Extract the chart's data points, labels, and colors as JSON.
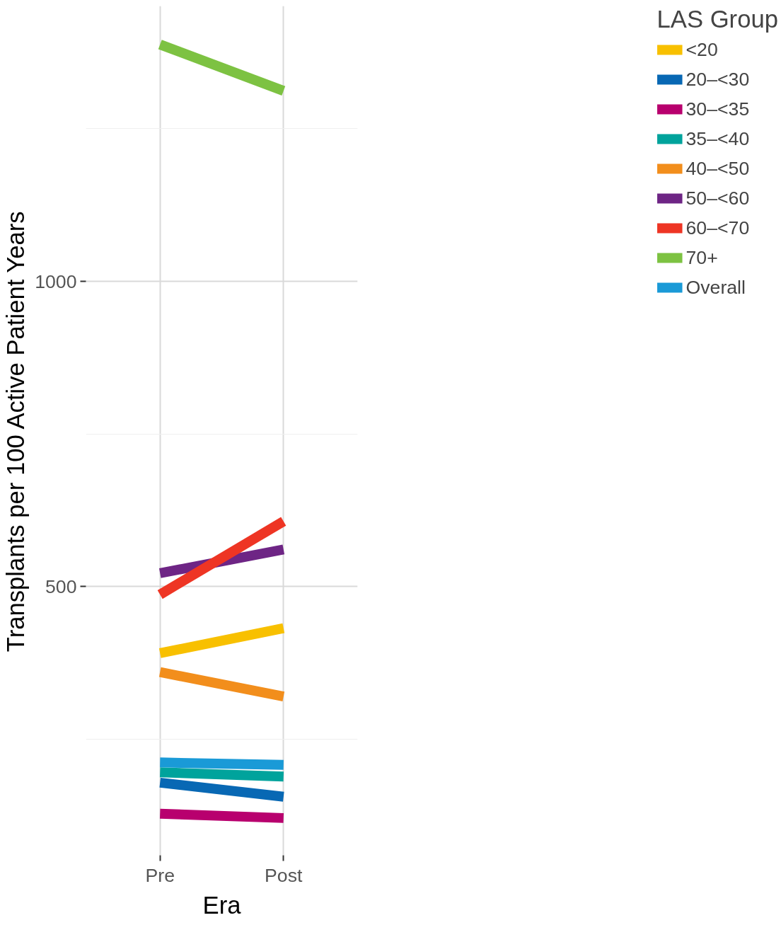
{
  "chart_data": {
    "type": "line",
    "xlabel": "Era",
    "ylabel": "Transplants per 100 Active Patient Years",
    "legend_title": "LAS Group",
    "legend": "right",
    "grid": true,
    "line_style": "solid",
    "marker": "none",
    "categories": [
      "Pre",
      "Post"
    ],
    "ylim": [
      60,
      1451
    ],
    "yticks": [
      {
        "value": 250,
        "label": null
      },
      500,
      {
        "value": 750,
        "label": null
      },
      1000,
      {
        "value": 1250,
        "label": null
      }
    ],
    "series": [
      {
        "name": "<20",
        "color": "#f8c000",
        "values": [
          391,
          432
        ]
      },
      {
        "name": "20–<30",
        "color": "#0868b4",
        "values": [
          179,
          156
        ]
      },
      {
        "name": "30–<35",
        "color": "#b8006e",
        "values": [
          128,
          121
        ]
      },
      {
        "name": "35–<40",
        "color": "#00a39c",
        "values": [
          196,
          189
        ]
      },
      {
        "name": "40–<50",
        "color": "#f28e1c",
        "values": [
          360,
          320
        ]
      },
      {
        "name": "50–<60",
        "color": "#6e2585",
        "values": [
          522,
          561
        ]
      },
      {
        "name": "60–<70",
        "color": "#ee3524",
        "values": [
          487,
          607
        ]
      },
      {
        "name": "70+",
        "color": "#7dc242",
        "values": [
          1388,
          1312
        ]
      },
      {
        "name": "Overall",
        "color": "#1a9ad7",
        "values": [
          212,
          208
        ]
      }
    ]
  }
}
